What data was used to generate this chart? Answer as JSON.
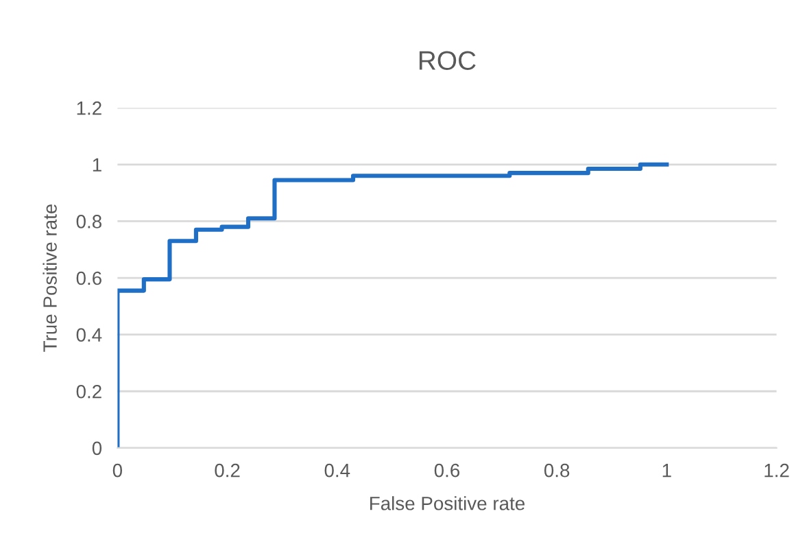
{
  "chart_data": {
    "type": "step",
    "title": "ROC",
    "xlabel": "False Positive rate",
    "ylabel": "True Positive rate",
    "x": [
      0,
      0,
      0.048,
      0.095,
      0.143,
      0.19,
      0.238,
      0.286,
      0.429,
      0.714,
      0.857,
      0.952,
      1.0
    ],
    "series": [
      {
        "color": "#1f6fc6",
        "values": [
          0,
          0.555,
          0.595,
          0.73,
          0.77,
          0.78,
          0.81,
          0.945,
          0.96,
          0.97,
          0.985,
          1.0,
          1.0
        ]
      }
    ],
    "xlim": [
      0,
      1.2
    ],
    "xticks": [
      0,
      0.2,
      0.4,
      0.6,
      0.8,
      1,
      1.2
    ],
    "ylim": [
      0,
      1.2
    ],
    "yticks": [
      0,
      0.2,
      0.4,
      0.6,
      0.8,
      1,
      1.2
    ],
    "grid": "y",
    "legend": false,
    "marker": "none",
    "line_style": "solid"
  }
}
